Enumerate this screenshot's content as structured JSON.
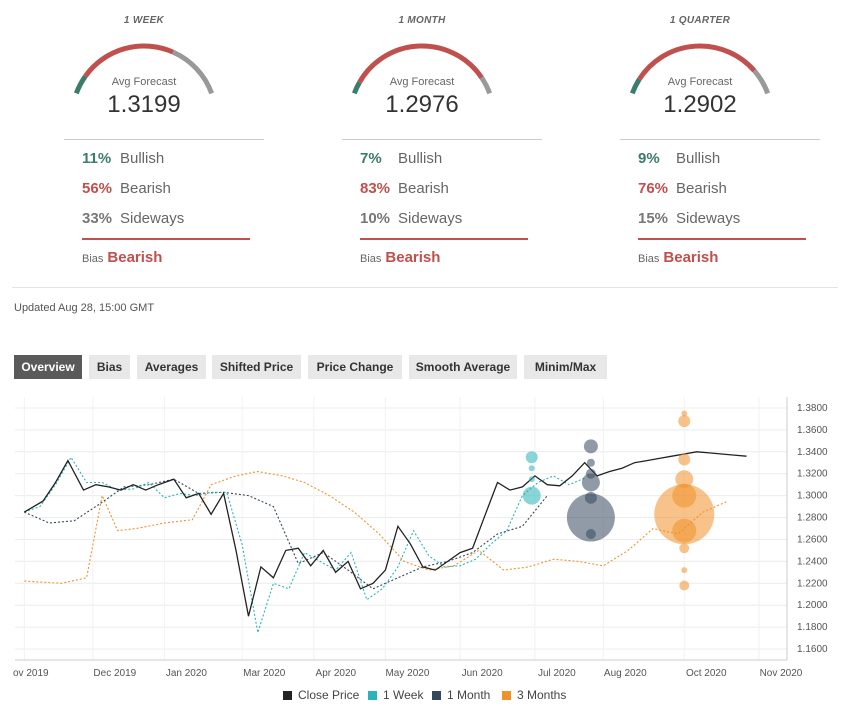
{
  "gauges": [
    {
      "period": "1 WEEK",
      "avg_label": "Avg Forecast",
      "avg_value": "1.3199",
      "bullish_pct": "11%",
      "bullish_label": "Bullish",
      "bearish_pct": "56%",
      "bearish_label": "Bearish",
      "sideways_pct": "33%",
      "sideways_label": "Sideways",
      "bias_label": "Bias",
      "bias_value": "Bearish",
      "bullish": 0.11,
      "bearish": 0.56,
      "sideways": 0.33
    },
    {
      "period": "1 MONTH",
      "avg_label": "Avg Forecast",
      "avg_value": "1.2976",
      "bullish_pct": "7%",
      "bullish_label": "Bullish",
      "bearish_pct": "83%",
      "bearish_label": "Bearish",
      "sideways_pct": "10%",
      "sideways_label": "Sideways",
      "bias_label": "Bias",
      "bias_value": "Bearish",
      "bullish": 0.07,
      "bearish": 0.83,
      "sideways": 0.1
    },
    {
      "period": "1 QUARTER",
      "avg_label": "Avg Forecast",
      "avg_value": "1.2902",
      "bullish_pct": "9%",
      "bullish_label": "Bullish",
      "bearish_pct": "76%",
      "bearish_label": "Bearish",
      "sideways_pct": "15%",
      "sideways_label": "Sideways",
      "bias_label": "Bias",
      "bias_value": "Bearish",
      "bullish": 0.09,
      "bearish": 0.76,
      "sideways": 0.15
    }
  ],
  "colors": {
    "bullish": "#3a7d6a",
    "bearish": "#c0504d",
    "sideways": "#999999",
    "close": "#222222",
    "week": "#2ab3b8",
    "month": "#34495e",
    "quarter": "#f0922b"
  },
  "updated": "Updated Aug 28, 15:00 GMT",
  "tabs": [
    "Overview",
    "Bias",
    "Averages",
    "Shifted Price",
    "Price Change",
    "Smooth Average",
    "Minim/Max"
  ],
  "active_tab": "Overview",
  "chart_data": {
    "type": "line",
    "x_ticks": [
      "ov 2019",
      "Dec 2019",
      "Jan 2020",
      "Mar 2020",
      "Apr 2020",
      "May 2020",
      "Jun 2020",
      "Jul 2020",
      "Aug 2020",
      "Oct 2020",
      "Nov 2020"
    ],
    "y_ticks": [
      "1.3800",
      "1.3600",
      "1.3400",
      "1.3200",
      "1.3000",
      "1.2800",
      "1.2600",
      "1.2400",
      "1.2200",
      "1.2000",
      "1.1800",
      "1.1600"
    ],
    "ylim": [
      1.15,
      1.39
    ],
    "grid": true,
    "legend_position": "bottom",
    "series": [
      {
        "name": "Close Price",
        "style": "solid",
        "x": [
          0,
          0.6,
          1.0,
          1.4,
          1.9,
          2.3,
          2.7,
          3.1,
          3.5,
          3.9,
          4.3,
          4.8,
          5.2,
          5.6,
          6.0,
          6.4,
          6.8,
          7.2,
          7.6,
          8.0,
          8.4,
          8.8,
          9.2,
          9.6,
          10.0,
          10.4,
          10.8,
          11.2,
          11.6,
          12.0,
          12.4,
          12.8,
          13.2,
          13.6,
          14.0,
          14.4,
          14.8,
          15.2,
          15.6,
          16.0,
          16.4,
          16.8,
          17.2,
          17.6,
          18.0,
          18.4,
          18.8,
          19.2,
          19.6,
          20.0,
          20.4,
          20.8,
          21.2,
          21.6,
          22.0,
          22.4,
          22.8,
          23.2
        ],
        "y": [
          1.285,
          1.295,
          1.312,
          1.332,
          1.305,
          1.31,
          1.308,
          1.305,
          1.31,
          1.305,
          1.31,
          1.315,
          1.298,
          1.302,
          1.283,
          1.302,
          1.25,
          1.19,
          1.235,
          1.225,
          1.25,
          1.252,
          1.236,
          1.25,
          1.23,
          1.24,
          1.215,
          1.22,
          1.232,
          1.272,
          1.256,
          1.235,
          1.232,
          1.24,
          1.248,
          1.252,
          1.282,
          1.312,
          1.305,
          1.308,
          1.318,
          1.31,
          1.309,
          1.318,
          1.33,
          1.318,
          1.322,
          1.325,
          1.33,
          1.332,
          1.334,
          1.336,
          1.338,
          1.34,
          1.339,
          1.338,
          1.337,
          1.336
        ]
      },
      {
        "name": "1 Week",
        "style": "dashed",
        "x": [
          0,
          0.5,
          1.0,
          1.5,
          2.0,
          2.5,
          3.0,
          3.5,
          4.0,
          4.5,
          5.0,
          5.5,
          6.0,
          6.5,
          7.0,
          7.5,
          8.0,
          8.5,
          9.0,
          9.5,
          10.0,
          10.5,
          11.0,
          11.5,
          12.0,
          12.5,
          13.0,
          13.5,
          14.0,
          14.5,
          15.0,
          15.5,
          16.0,
          16.5,
          17.0,
          17.5,
          18.0
        ],
        "y": [
          1.285,
          1.29,
          1.31,
          1.335,
          1.312,
          1.312,
          1.305,
          1.306,
          1.312,
          1.298,
          1.302,
          1.3,
          1.303,
          1.303,
          1.255,
          1.175,
          1.22,
          1.215,
          1.248,
          1.24,
          1.232,
          1.248,
          1.205,
          1.215,
          1.235,
          1.268,
          1.245,
          1.235,
          1.236,
          1.242,
          1.256,
          1.268,
          1.3,
          1.312,
          1.318,
          1.31,
          1.316
        ]
      },
      {
        "name": "1 Month",
        "style": "dashed",
        "x": [
          0,
          0.8,
          1.6,
          2.4,
          3.2,
          4.0,
          4.8,
          5.6,
          6.4,
          7.2,
          8.0,
          8.8,
          9.6,
          10.4,
          11.2,
          12.0,
          12.8,
          13.6,
          14.4,
          15.2,
          16.0,
          16.8
        ],
        "y": [
          1.285,
          1.275,
          1.277,
          1.292,
          1.308,
          1.31,
          1.315,
          1.302,
          1.303,
          1.3,
          1.29,
          1.238,
          1.248,
          1.232,
          1.215,
          1.225,
          1.235,
          1.24,
          1.248,
          1.265,
          1.272,
          1.3
        ]
      },
      {
        "name": "3 Months",
        "style": "dashed",
        "x": [
          0,
          1.2,
          2.0,
          2.5,
          3.0,
          3.6,
          4.5,
          5.4,
          6.0,
          6.8,
          7.5,
          8.3,
          9.0,
          9.8,
          10.6,
          11.4,
          12.2,
          13.0,
          13.8,
          14.6,
          15.4,
          16.2,
          17.0,
          17.8,
          18.6,
          19.4,
          20.2,
          21.0,
          21.8,
          22.6
        ],
        "y": [
          1.222,
          1.22,
          1.225,
          1.3,
          1.268,
          1.27,
          1.275,
          1.278,
          1.31,
          1.318,
          1.322,
          1.318,
          1.312,
          1.3,
          1.285,
          1.265,
          1.24,
          1.232,
          1.236,
          1.25,
          1.232,
          1.235,
          1.242,
          1.24,
          1.236,
          1.25,
          1.27,
          1.265,
          1.285,
          1.295
        ]
      }
    ],
    "forecast_bubbles": [
      {
        "series": "1 Week",
        "x": 16.3,
        "values": [
          1.335,
          1.325,
          1.315,
          1.3
        ],
        "sizes": [
          6,
          3,
          3,
          9
        ]
      },
      {
        "series": "1 Month",
        "x": 18.2,
        "values": [
          1.345,
          1.33,
          1.32,
          1.312,
          1.298,
          1.28,
          1.265
        ],
        "sizes": [
          7,
          4,
          5,
          9,
          6,
          24,
          5
        ]
      },
      {
        "series": "3 Months",
        "x": 21.2,
        "values": [
          1.375,
          1.368,
          1.333,
          1.315,
          1.3,
          1.283,
          1.268,
          1.252,
          1.232,
          1.218
        ],
        "sizes": [
          3,
          6,
          6,
          9,
          12,
          30,
          12,
          5,
          3,
          5
        ]
      }
    ]
  }
}
